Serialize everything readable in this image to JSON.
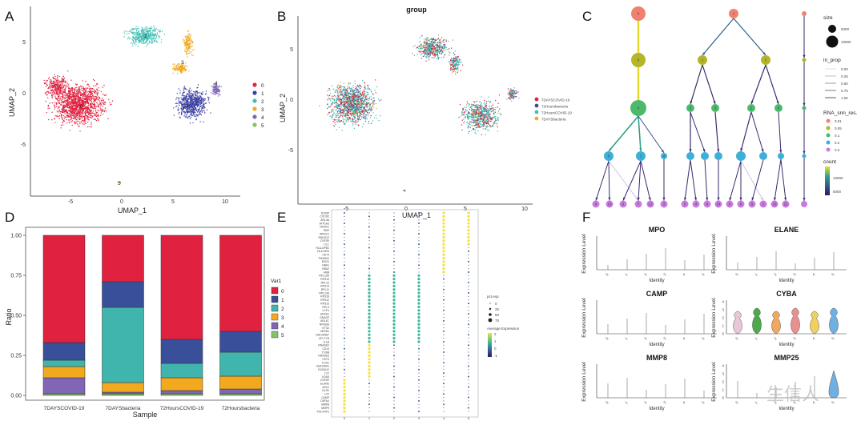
{
  "panels": {
    "A": {
      "label": "A",
      "xlabel": "UMAP_1",
      "ylabel": "UMAP_2",
      "x_ticks": [
        "-5",
        "0",
        "5",
        "10"
      ],
      "y_ticks": [
        "5",
        "0",
        "-5"
      ],
      "cluster_labels": [
        "0",
        "1",
        "2",
        "3",
        "4",
        "5"
      ],
      "legend": [
        {
          "label": "0",
          "color": "#e0213f"
        },
        {
          "label": "1",
          "color": "#3a3fa3"
        },
        {
          "label": "2",
          "color": "#3fc0b5"
        },
        {
          "label": "3",
          "color": "#f2a91d"
        },
        {
          "label": "4",
          "color": "#8166b8"
        },
        {
          "label": "5",
          "color": "#82c466"
        }
      ]
    },
    "B": {
      "label": "B",
      "title": "group",
      "xlabel": "UMAP_1",
      "ylabel": "UMAP_2",
      "x_ticks": [
        "-5",
        "0",
        "5",
        "10"
      ],
      "y_ticks": [
        "5",
        "0",
        "-5"
      ],
      "legend": [
        {
          "label": "7DAYSCOVID-19",
          "color": "#e0213f"
        },
        {
          "label": "72Hoursbacteria",
          "color": "#3a4f9a"
        },
        {
          "label": "72HoursCOVID-19",
          "color": "#3fc0b5"
        },
        {
          "label": "7DAYSbacteria",
          "color": "#f2a91d"
        }
      ]
    },
    "C": {
      "label": "C",
      "legend_size_title": "size",
      "size_values": [
        "5000",
        "10000"
      ],
      "in_prop_title": "in_prop",
      "in_prop_values": [
        "0.00",
        "0.25",
        "0.50",
        "0.75",
        "1.00"
      ],
      "res_title": "RNA_snn_res.",
      "res_values": [
        "0.01",
        "0.05",
        "0.1",
        "0.2",
        "0.3"
      ],
      "res_colors": [
        "#f08070",
        "#b5b52a",
        "#4cba6a",
        "#3cb0d8",
        "#c97ae0"
      ],
      "count_title": "count",
      "count_values": [
        "10000",
        "5000"
      ],
      "bottom_labels": [
        "0",
        "19",
        "9",
        "7",
        "13",
        "3",
        "5",
        "4",
        "6",
        "14",
        "0",
        "8",
        "9",
        "2",
        "16",
        "11",
        "12"
      ]
    },
    "D": {
      "label": "D",
      "ylabel": "Ratio",
      "xlabel": "Sample",
      "y_ticks": [
        "1.00",
        "0.75",
        "0.50",
        "0.25",
        "0.00"
      ],
      "legend_title": "Var1"
    },
    "E": {
      "label": "E",
      "genes": [
        "S100P",
        "CXCR2",
        "ARL4A",
        "ATP1A3",
        "RUNX1",
        "SMP",
        "WFDC2",
        "SNHG12",
        "CSF3R",
        "CLC",
        "HLA-DPB1",
        "HLA-DRA",
        "CD74",
        "TMSB4X",
        "ENO1",
        "HBA1",
        "HBA2",
        "HBB",
        "RPL13A",
        "RPS19",
        "RPL10",
        "RPS14",
        "RPL11",
        "RPL13A",
        "RPS18",
        "RPS12",
        "RPS15",
        "RPL3",
        "LCP1",
        "ANXA1",
        "GRASP",
        "ARL4C",
        "NFKBIA",
        "ETS2",
        "NFKB1",
        "LINC00987",
        "MT-CYB",
        "IL1B",
        "RNASE2",
        "CD14",
        "CYBB",
        "RNASE3",
        "CST3",
        "FCN1",
        "CEACAM1",
        "S100A12",
        "LYZ",
        "VCAN",
        "CSF3R",
        "ELANE",
        "AZU1",
        "IL1R2",
        "LTF",
        "CAMP",
        "DEFA4",
        "MMP8",
        "MMP9",
        "PGLYRP1"
      ],
      "clusters": [
        "0",
        "1",
        "2",
        "3",
        "4",
        "5"
      ],
      "size_title": "pct.exp",
      "size_values": [
        "0",
        "25",
        "50",
        "75"
      ],
      "color_title": "Average Expression",
      "color_values": [
        "2",
        "1",
        "0",
        "-1"
      ]
    },
    "F": {
      "label": "F",
      "ylabel": "Expression Level",
      "xlabel": "Identity",
      "identities": [
        "0",
        "1",
        "2",
        "3",
        "4",
        "5"
      ],
      "cyba_y_ticks": [
        "4",
        "3",
        "2",
        "1",
        "0"
      ],
      "mmp25_y_ticks": [
        "4",
        "3",
        "2",
        "1",
        "0"
      ],
      "violin_colors": [
        "#e8c8d8",
        "#4caa4a",
        "#f0a860",
        "#e89090",
        "#f0d060",
        "#70b0e0"
      ],
      "plots": [
        {
          "gene": "MPO"
        },
        {
          "gene": "ELANE"
        },
        {
          "gene": "CAMP"
        },
        {
          "gene": "CYBA"
        },
        {
          "gene": "MMP8"
        },
        {
          "gene": "MMP25"
        }
      ]
    }
  },
  "chart_data": {
    "type": "bar",
    "title": "",
    "xlabel": "Sample",
    "ylabel": "Ratio",
    "ylim": [
      0,
      1
    ],
    "stacked": true,
    "categories": [
      "7DAYSCOVID-19",
      "7DAYSbacteria",
      "72HoursCOVID-19",
      "72Hoursbacteria"
    ],
    "series": [
      {
        "name": "0",
        "color": "#e0213f",
        "values": [
          0.67,
          0.29,
          0.65,
          0.6
        ]
      },
      {
        "name": "1",
        "color": "#3a4f9a",
        "values": [
          0.11,
          0.16,
          0.15,
          0.13
        ]
      },
      {
        "name": "2",
        "color": "#3fb5ad",
        "values": [
          0.04,
          0.47,
          0.09,
          0.15
        ]
      },
      {
        "name": "3",
        "color": "#f2a91d",
        "values": [
          0.07,
          0.06,
          0.08,
          0.08
        ]
      },
      {
        "name": "4",
        "color": "#8166b8",
        "values": [
          0.1,
          0.01,
          0.02,
          0.03
        ]
      },
      {
        "name": "5",
        "color": "#82c466",
        "values": [
          0.01,
          0.01,
          0.01,
          0.01
        ]
      }
    ]
  },
  "watermark": "生信人"
}
